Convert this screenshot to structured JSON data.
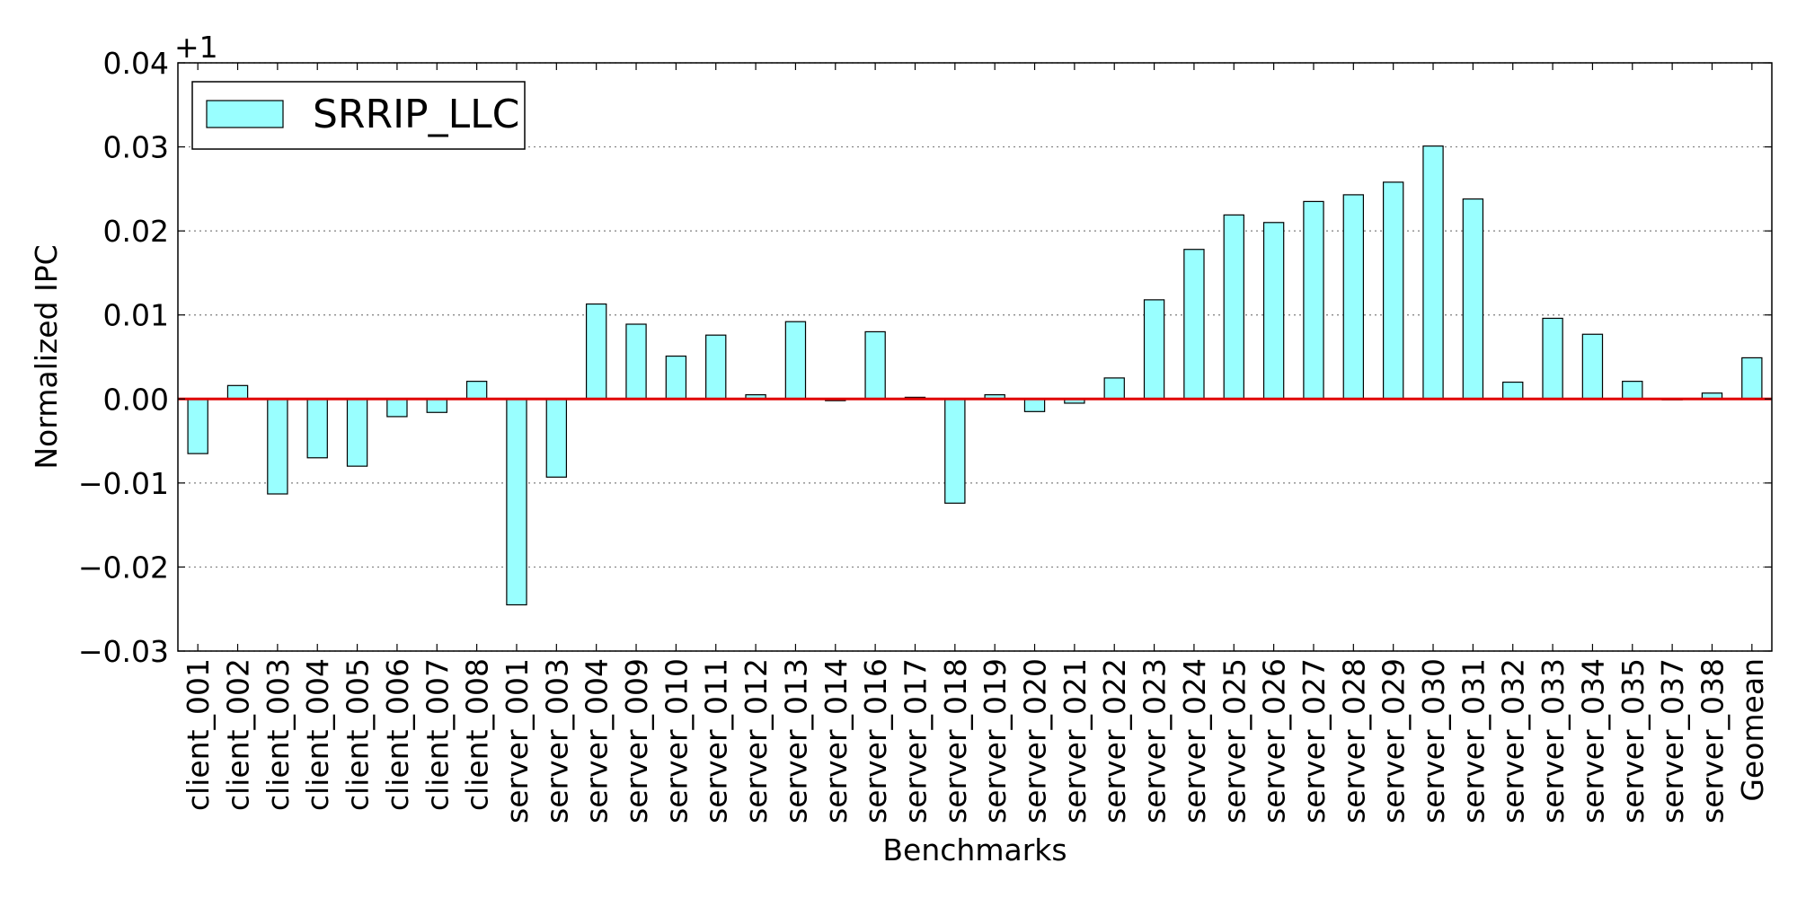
{
  "chart_data": {
    "type": "bar",
    "title": "",
    "xlabel": "Benchmarks",
    "ylabel": "Normalized IPC",
    "y_offset_label": "+1",
    "y_offset": 1,
    "ylim": [
      -0.03,
      0.04
    ],
    "yticks": [
      -0.03,
      -0.02,
      -0.01,
      0.0,
      0.01,
      0.02,
      0.03,
      0.04
    ],
    "ytick_labels": [
      "−0.03",
      "−0.02",
      "−0.01",
      "0.00",
      "0.01",
      "0.02",
      "0.03",
      "0.04"
    ],
    "grid": "horizontal-dotted",
    "legend_position": "top-left",
    "reference_line": {
      "y": 0.0,
      "color": "#e00000"
    },
    "categories": [
      "client_001",
      "client_002",
      "client_003",
      "client_004",
      "client_005",
      "client_006",
      "client_007",
      "client_008",
      "server_001",
      "server_003",
      "server_004",
      "server_009",
      "server_010",
      "server_011",
      "server_012",
      "server_013",
      "server_014",
      "server_016",
      "server_017",
      "server_018",
      "server_019",
      "server_020",
      "server_021",
      "server_022",
      "server_023",
      "server_024",
      "server_025",
      "server_026",
      "server_027",
      "server_028",
      "server_029",
      "server_030",
      "server_031",
      "server_032",
      "server_033",
      "server_034",
      "server_035",
      "server_037",
      "server_038",
      "Geomean"
    ],
    "series": [
      {
        "name": "SRRIP_LLC",
        "color": "#99ffff",
        "values": [
          -0.0065,
          0.0016,
          -0.0113,
          -0.007,
          -0.008,
          -0.0021,
          -0.0016,
          0.0021,
          -0.0245,
          -0.0093,
          0.0113,
          0.0089,
          0.0051,
          0.0076,
          0.0005,
          0.0092,
          -0.0002,
          0.008,
          0.0002,
          -0.0124,
          0.0005,
          -0.0015,
          -0.0005,
          0.0025,
          0.0118,
          0.0178,
          0.0219,
          0.021,
          0.0235,
          0.0243,
          0.0258,
          0.0301,
          0.0238,
          0.002,
          0.0096,
          0.0077,
          0.0021,
          -0.0001,
          0.0007,
          0.0049
        ]
      }
    ]
  }
}
